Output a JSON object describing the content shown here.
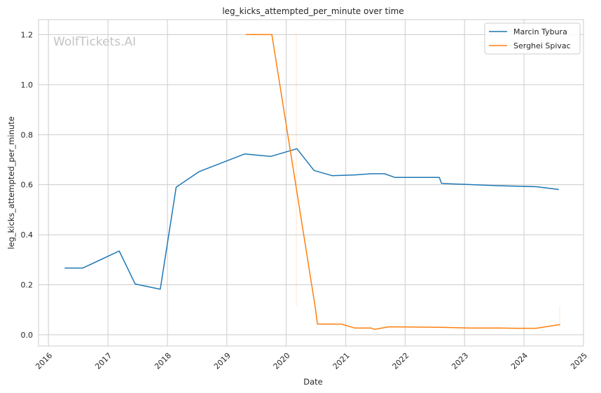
{
  "chart_data": {
    "type": "line",
    "title": "leg_kicks_attempted_per_minute over time",
    "xlabel": "Date",
    "ylabel": "leg_kicks_attempted_per_minute",
    "watermark": "WolfTickets.AI",
    "xlim": [
      "2015-11-01",
      "2025-01-01"
    ],
    "ylim": [
      -0.045,
      1.26
    ],
    "x_ticks": [
      "2016",
      "2017",
      "2018",
      "2019",
      "2020",
      "2021",
      "2022",
      "2023",
      "2024",
      "2025"
    ],
    "y_ticks": [
      "0.0",
      "0.2",
      "0.4",
      "0.6",
      "0.8",
      "1.0",
      "1.2"
    ],
    "grid": true,
    "legend_position": "top-right",
    "series": [
      {
        "name": "Marcin Tybura",
        "color": "#1f77b4",
        "points": [
          [
            "2016-04-09",
            0.267
          ],
          [
            "2016-07-30",
            0.267
          ],
          [
            "2017-03-11",
            0.335
          ],
          [
            "2017-06-17",
            0.203
          ],
          [
            "2017-11-18",
            0.182
          ],
          [
            "2018-02-24",
            0.59
          ],
          [
            "2018-07-14",
            0.652
          ],
          [
            "2019-04-20",
            0.723
          ],
          [
            "2019-09-28",
            0.713
          ],
          [
            "2020-03-07",
            0.744
          ],
          [
            "2020-06-20",
            0.657
          ],
          [
            "2020-10-10",
            0.636
          ],
          [
            "2021-02-20",
            0.639
          ],
          [
            "2021-06-05",
            0.644
          ],
          [
            "2021-08-28",
            0.644
          ],
          [
            "2021-10-30",
            0.629
          ],
          [
            "2022-07-30",
            0.629
          ],
          [
            "2022-08-13",
            0.605
          ],
          [
            "2023-01-14",
            0.601
          ],
          [
            "2023-07-29",
            0.596
          ],
          [
            "2024-03-16",
            0.592
          ],
          [
            "2024-08-03",
            0.581
          ]
        ]
      },
      {
        "name": "Serghei Spivac",
        "color": "#ff7f0e",
        "points": [
          [
            "2019-04-27",
            1.2
          ],
          [
            "2019-10-05",
            1.2
          ],
          [
            "2020-06-27",
            0.113
          ],
          [
            "2020-07-11",
            0.043
          ],
          [
            "2020-12-05",
            0.043
          ],
          [
            "2021-02-27",
            0.027
          ],
          [
            "2021-06-05",
            0.027
          ],
          [
            "2021-06-26",
            0.022
          ],
          [
            "2021-09-25",
            0.032
          ],
          [
            "2022-08-06",
            0.03
          ],
          [
            "2023-02-04",
            0.027
          ],
          [
            "2023-07-29",
            0.027
          ],
          [
            "2023-11-18",
            0.026
          ],
          [
            "2024-03-16",
            0.026
          ],
          [
            "2024-08-10",
            0.041
          ]
        ]
      }
    ]
  }
}
